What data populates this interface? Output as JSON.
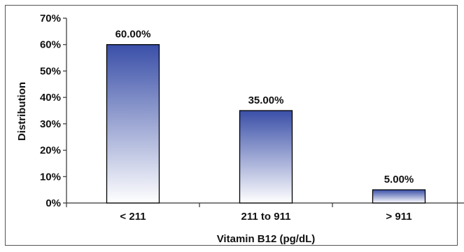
{
  "chart_data": {
    "type": "bar",
    "title": "",
    "xlabel": "Vitamin B12 (pg/dL)",
    "ylabel": "Distribution",
    "categories": [
      "< 211",
      "211 to 911",
      "> 911"
    ],
    "values": [
      60,
      35,
      5
    ],
    "data_labels": [
      "60.00%",
      "35.00%",
      "5.00%"
    ],
    "ylim": [
      0,
      70
    ],
    "yticks": [
      0,
      10,
      20,
      30,
      40,
      50,
      60,
      70
    ],
    "ytick_labels": [
      "0%",
      "10%",
      "20%",
      "30%",
      "40%",
      "50%",
      "60%",
      "70%"
    ],
    "grid": false,
    "legend": "none",
    "colors": {
      "bar_top": "#3a4fa8",
      "bar_bottom": "#ffffff",
      "bar_outline": "#000000",
      "axis": "#333333"
    }
  }
}
